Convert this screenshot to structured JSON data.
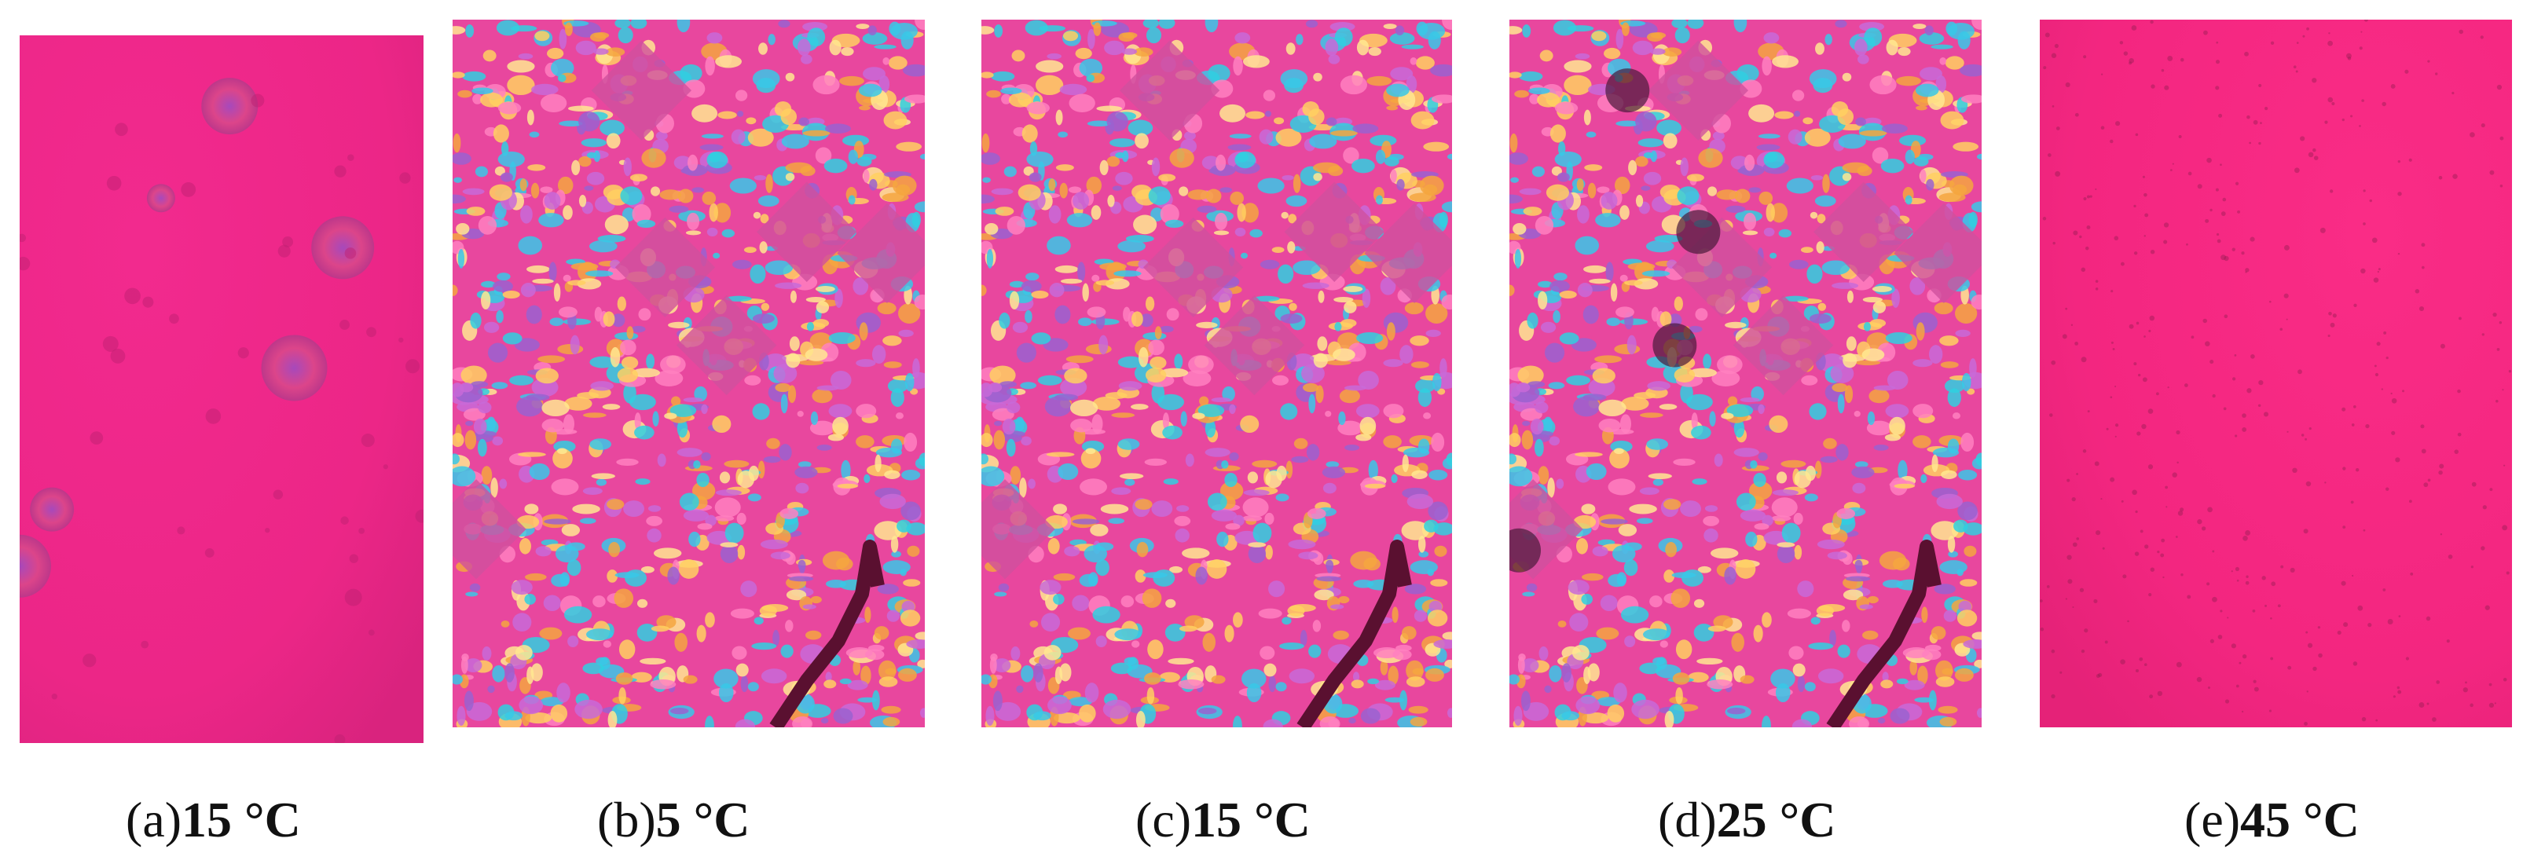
{
  "figure": {
    "panels": [
      {
        "label": "(a)",
        "caption": "15 °C"
      },
      {
        "label": "(b)",
        "caption": "5 °C"
      },
      {
        "label": "(c)",
        "caption": "15 °C"
      },
      {
        "label": "(d)",
        "caption": "25 °C"
      },
      {
        "label": "(e)",
        "caption": "45 °C"
      }
    ]
  }
}
